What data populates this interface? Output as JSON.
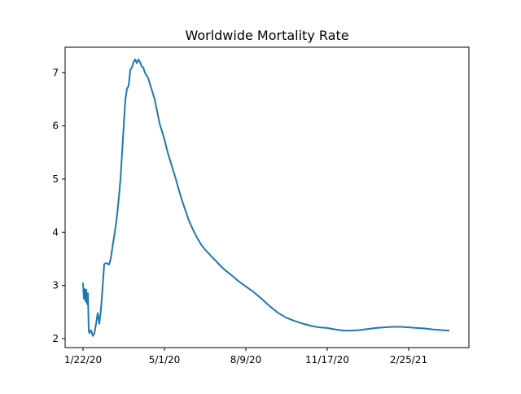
{
  "chart_data": {
    "type": "line",
    "title": "Worldwide Mortality Rate",
    "xlabel": "",
    "ylabel": "",
    "x_tick_labels": [
      "1/22/20",
      "5/1/20",
      "8/9/20",
      "11/17/20",
      "2/25/21"
    ],
    "x_tick_days": [
      0,
      100,
      200,
      300,
      400
    ],
    "y_ticks": [
      2,
      3,
      4,
      5,
      6,
      7
    ],
    "xlim": [
      -22,
      474
    ],
    "ylim": [
      1.83,
      7.48
    ],
    "grid": false,
    "series": [
      {
        "color": "#1f77b4",
        "x": [
          0,
          1,
          2,
          3,
          4,
          5,
          6,
          7,
          8,
          9,
          10,
          12,
          14,
          16,
          18,
          20,
          22,
          24,
          26,
          28,
          30,
          32,
          34,
          36,
          38,
          40,
          42,
          44,
          46,
          48,
          50,
          52,
          54,
          56,
          58,
          60,
          62,
          64,
          66,
          68,
          70,
          72,
          74,
          76,
          78,
          80,
          82,
          84,
          86,
          88,
          90,
          92,
          94,
          96,
          98,
          100,
          102,
          104,
          106,
          110,
          114,
          118,
          122,
          126,
          130,
          135,
          140,
          145,
          150,
          155,
          160,
          165,
          170,
          175,
          180,
          185,
          190,
          200,
          210,
          220,
          230,
          240,
          250,
          260,
          270,
          280,
          290,
          300,
          310,
          320,
          325,
          330,
          340,
          350,
          360,
          370,
          380,
          390,
          400,
          410,
          420,
          430,
          440,
          450
        ],
        "y": [
          3.05,
          2.75,
          2.93,
          2.7,
          2.92,
          2.65,
          2.85,
          2.15,
          2.1,
          2.15,
          2.15,
          2.05,
          2.1,
          2.28,
          2.48,
          2.28,
          2.55,
          2.95,
          3.4,
          3.42,
          3.41,
          3.39,
          3.5,
          3.7,
          3.9,
          4.1,
          4.35,
          4.65,
          5.0,
          5.5,
          6.0,
          6.5,
          6.7,
          6.75,
          7.05,
          7.1,
          7.2,
          7.25,
          7.18,
          7.25,
          7.2,
          7.12,
          7.1,
          7.0,
          6.95,
          6.9,
          6.8,
          6.7,
          6.6,
          6.5,
          6.35,
          6.2,
          6.05,
          5.95,
          5.85,
          5.75,
          5.62,
          5.5,
          5.4,
          5.2,
          5.0,
          4.78,
          4.58,
          4.4,
          4.22,
          4.05,
          3.9,
          3.77,
          3.67,
          3.59,
          3.51,
          3.43,
          3.35,
          3.28,
          3.22,
          3.16,
          3.09,
          2.98,
          2.87,
          2.74,
          2.6,
          2.48,
          2.39,
          2.33,
          2.28,
          2.24,
          2.21,
          2.2,
          2.17,
          2.15,
          2.15,
          2.15,
          2.16,
          2.18,
          2.2,
          2.21,
          2.22,
          2.22,
          2.21,
          2.2,
          2.19,
          2.17,
          2.16,
          2.15
        ]
      }
    ]
  }
}
